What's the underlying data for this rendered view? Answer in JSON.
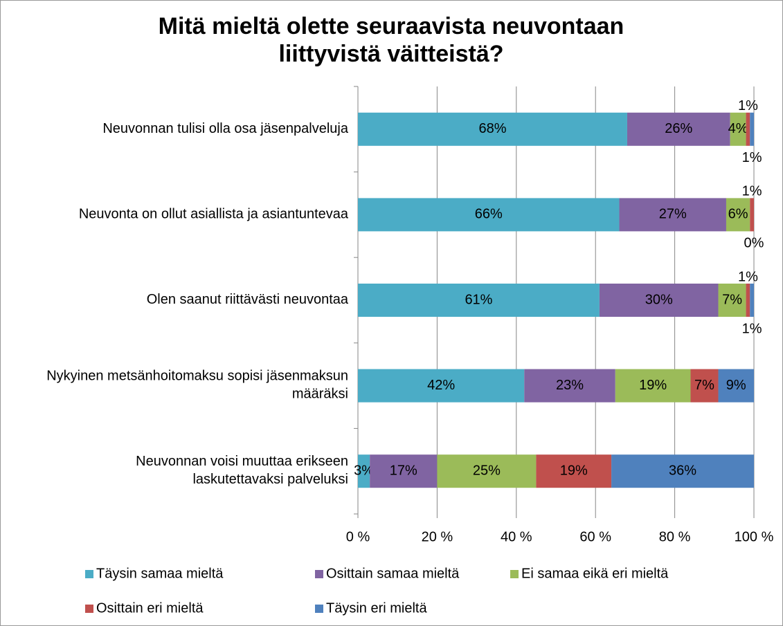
{
  "chart_data": {
    "type": "stacked-bar-100",
    "orientation": "horizontal",
    "title": "Mitä mieltä olette seuraavista neuvontaan liittyvistä väitteistä?",
    "categories": [
      "Neuvonnan tulisi olla osa jäsenpalveluja",
      "Neuvonta on ollut asiallista ja asiantuntevaa",
      "Olen saanut riittävästi neuvontaa",
      "Nykyinen metsänhoitomaksu sopisi jäsenmaksun määräksi",
      "Neuvonnan voisi muuttaa erikseen laskutettavaksi palveluksi"
    ],
    "series": [
      {
        "name": "Täysin samaa mieltä",
        "color": "#4bacc6",
        "values": [
          68,
          66,
          61,
          42,
          3
        ],
        "value_labels": [
          "68%",
          "66%",
          "61%",
          "42%",
          "3%"
        ]
      },
      {
        "name": "Osittain samaa mieltä",
        "color": "#8064a2",
        "values": [
          26,
          27,
          30,
          23,
          17
        ],
        "value_labels": [
          "26%",
          "27%",
          "30%",
          "23%",
          "17%"
        ]
      },
      {
        "name": "Ei samaa eikä eri mieltä",
        "color": "#9bbb59",
        "values": [
          4,
          6,
          7,
          19,
          25
        ],
        "value_labels": [
          "4%",
          "6%",
          "7%",
          "19%",
          "25%"
        ]
      },
      {
        "name": "Osittain eri mieltä",
        "color": "#c0504d",
        "values": [
          1,
          1,
          1,
          7,
          19
        ],
        "value_labels": [
          "1%",
          "1%",
          "1%",
          "7%",
          "19%"
        ]
      },
      {
        "name": "Täysin eri mieltä",
        "color": "#4f81bd",
        "values": [
          1,
          0,
          1,
          9,
          36
        ],
        "value_labels": [
          "1%",
          "0%",
          "1%",
          "9%",
          "36%"
        ]
      }
    ],
    "xlim": [
      0,
      100
    ],
    "xticks": [
      {
        "value": 0,
        "label": "0 %"
      },
      {
        "value": 20,
        "label": "20 %"
      },
      {
        "value": 40,
        "label": "40 %"
      },
      {
        "value": 60,
        "label": "60 %"
      },
      {
        "value": 80,
        "label": "80 %"
      },
      {
        "value": 100,
        "label": "100 %"
      }
    ],
    "grid": true,
    "legend": "bottom"
  }
}
